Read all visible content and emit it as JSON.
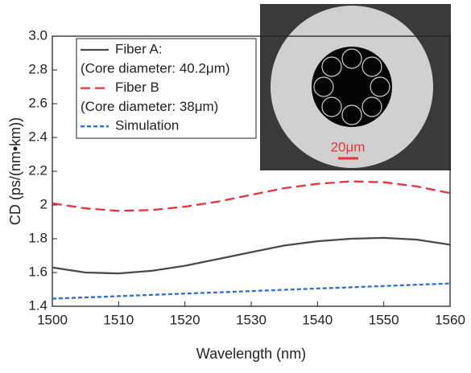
{
  "chart_data": {
    "type": "line",
    "x_label": "Wavelength (nm)",
    "y_label": "CD (ps/(nm•km))",
    "x": [
      1500,
      1505,
      1510,
      1515,
      1520,
      1525,
      1530,
      1535,
      1540,
      1545,
      1550,
      1555,
      1560
    ],
    "series": [
      {
        "name": "Fiber A:",
        "color": "#4a4a4a",
        "dash": "solid",
        "values": [
          1.63,
          1.6,
          1.595,
          1.61,
          1.64,
          1.68,
          1.72,
          1.76,
          1.785,
          1.8,
          1.805,
          1.795,
          1.765
        ]
      },
      {
        "name": "Fiber B",
        "color": "#e8323c",
        "dash": "dashed",
        "values": [
          2.01,
          1.98,
          1.965,
          1.97,
          1.99,
          2.02,
          2.06,
          2.1,
          2.125,
          2.14,
          2.135,
          2.11,
          2.07
        ]
      },
      {
        "name": "Simulation",
        "color": "#2b6fd6",
        "dash": "dotted",
        "values": [
          1.445,
          1.4525,
          1.46,
          1.4675,
          1.475,
          1.4825,
          1.49,
          1.4975,
          1.505,
          1.5125,
          1.52,
          1.5275,
          1.535
        ]
      }
    ],
    "legend_notes": [
      "(Core diameter: 40.2μm)",
      "(Core diameter: 38μm)"
    ],
    "inset_scale_label": "20μm",
    "xlim": [
      1500,
      1560
    ],
    "xticks": [
      1500,
      1510,
      1520,
      1530,
      1540,
      1550,
      1560
    ],
    "ylim": [
      1.4,
      3.0
    ],
    "yticks": [
      1.4,
      1.6,
      1.8,
      2.0,
      2.2,
      2.4,
      2.6,
      2.8,
      {
        "value": 3.0,
        "label": "3.0"
      }
    ],
    "legend": "upper left"
  }
}
